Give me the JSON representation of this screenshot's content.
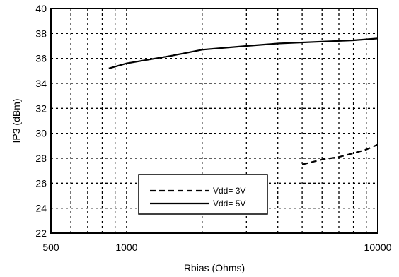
{
  "chart_data": {
    "type": "line",
    "xlabel": "Rbias (Ohms)",
    "ylabel": "IP3 (dBm)",
    "xscale": "log",
    "xlim": [
      500,
      10000
    ],
    "ylim": [
      22,
      40
    ],
    "x_ticks": [
      500,
      600,
      700,
      800,
      900,
      1000,
      2000,
      3000,
      4000,
      5000,
      6000,
      7000,
      8000,
      9000,
      10000
    ],
    "x_tick_labels": [
      {
        "value": 500,
        "label": "500"
      },
      {
        "value": 1000,
        "label": "1000"
      },
      {
        "value": 10000,
        "label": "10000"
      }
    ],
    "y_ticks": [
      22,
      24,
      26,
      28,
      30,
      32,
      34,
      36,
      38,
      40
    ],
    "y_tick_labels": [
      "22",
      "24",
      "26",
      "28",
      "30",
      "32",
      "34",
      "36",
      "38",
      "40"
    ],
    "grid": true,
    "legend_position": "bottom-center",
    "series": [
      {
        "name": "Vdd= 3V",
        "style": "dashed",
        "color": "#000000",
        "x": [
          5000,
          6000,
          7000,
          8000,
          9000,
          10000
        ],
        "y": [
          27.5,
          27.9,
          28.1,
          28.4,
          28.7,
          29.1
        ]
      },
      {
        "name": "Vdd= 5V",
        "style": "solid",
        "color": "#000000",
        "x": [
          850,
          1000,
          1500,
          2000,
          3000,
          4000,
          6000,
          8000,
          10000
        ],
        "y": [
          35.2,
          35.6,
          36.2,
          36.7,
          37.0,
          37.2,
          37.35,
          37.45,
          37.6
        ]
      }
    ]
  }
}
